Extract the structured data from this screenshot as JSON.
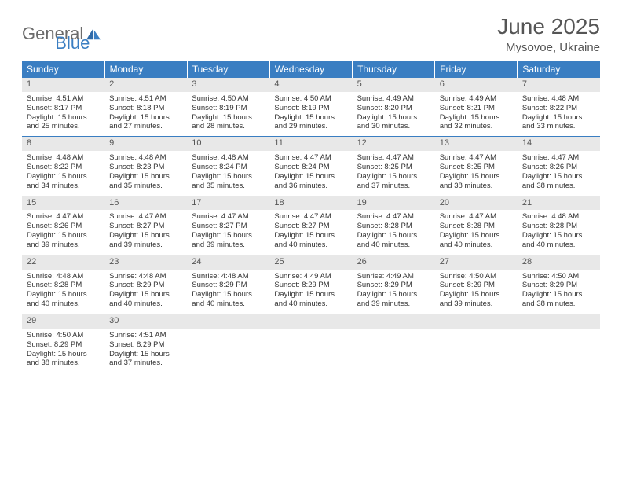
{
  "brand": {
    "part1": "General",
    "part2": "Blue"
  },
  "title": "June 2025",
  "location": "Mysovoe, Ukraine",
  "colors": {
    "header_bg": "#3a7ec2",
    "header_text": "#ffffff",
    "daynum_bg": "#e8e8e8",
    "rule": "#3a7ec2",
    "body_text": "#333333",
    "title_text": "#555555"
  },
  "days_of_week": [
    "Sunday",
    "Monday",
    "Tuesday",
    "Wednesday",
    "Thursday",
    "Friday",
    "Saturday"
  ],
  "weeks": [
    [
      {
        "n": "1",
        "sr": "4:51 AM",
        "ss": "8:17 PM",
        "dl": "15 hours and 25 minutes."
      },
      {
        "n": "2",
        "sr": "4:51 AM",
        "ss": "8:18 PM",
        "dl": "15 hours and 27 minutes."
      },
      {
        "n": "3",
        "sr": "4:50 AM",
        "ss": "8:19 PM",
        "dl": "15 hours and 28 minutes."
      },
      {
        "n": "4",
        "sr": "4:50 AM",
        "ss": "8:19 PM",
        "dl": "15 hours and 29 minutes."
      },
      {
        "n": "5",
        "sr": "4:49 AM",
        "ss": "8:20 PM",
        "dl": "15 hours and 30 minutes."
      },
      {
        "n": "6",
        "sr": "4:49 AM",
        "ss": "8:21 PM",
        "dl": "15 hours and 32 minutes."
      },
      {
        "n": "7",
        "sr": "4:48 AM",
        "ss": "8:22 PM",
        "dl": "15 hours and 33 minutes."
      }
    ],
    [
      {
        "n": "8",
        "sr": "4:48 AM",
        "ss": "8:22 PM",
        "dl": "15 hours and 34 minutes."
      },
      {
        "n": "9",
        "sr": "4:48 AM",
        "ss": "8:23 PM",
        "dl": "15 hours and 35 minutes."
      },
      {
        "n": "10",
        "sr": "4:48 AM",
        "ss": "8:24 PM",
        "dl": "15 hours and 35 minutes."
      },
      {
        "n": "11",
        "sr": "4:47 AM",
        "ss": "8:24 PM",
        "dl": "15 hours and 36 minutes."
      },
      {
        "n": "12",
        "sr": "4:47 AM",
        "ss": "8:25 PM",
        "dl": "15 hours and 37 minutes."
      },
      {
        "n": "13",
        "sr": "4:47 AM",
        "ss": "8:25 PM",
        "dl": "15 hours and 38 minutes."
      },
      {
        "n": "14",
        "sr": "4:47 AM",
        "ss": "8:26 PM",
        "dl": "15 hours and 38 minutes."
      }
    ],
    [
      {
        "n": "15",
        "sr": "4:47 AM",
        "ss": "8:26 PM",
        "dl": "15 hours and 39 minutes."
      },
      {
        "n": "16",
        "sr": "4:47 AM",
        "ss": "8:27 PM",
        "dl": "15 hours and 39 minutes."
      },
      {
        "n": "17",
        "sr": "4:47 AM",
        "ss": "8:27 PM",
        "dl": "15 hours and 39 minutes."
      },
      {
        "n": "18",
        "sr": "4:47 AM",
        "ss": "8:27 PM",
        "dl": "15 hours and 40 minutes."
      },
      {
        "n": "19",
        "sr": "4:47 AM",
        "ss": "8:28 PM",
        "dl": "15 hours and 40 minutes."
      },
      {
        "n": "20",
        "sr": "4:47 AM",
        "ss": "8:28 PM",
        "dl": "15 hours and 40 minutes."
      },
      {
        "n": "21",
        "sr": "4:48 AM",
        "ss": "8:28 PM",
        "dl": "15 hours and 40 minutes."
      }
    ],
    [
      {
        "n": "22",
        "sr": "4:48 AM",
        "ss": "8:28 PM",
        "dl": "15 hours and 40 minutes."
      },
      {
        "n": "23",
        "sr": "4:48 AM",
        "ss": "8:29 PM",
        "dl": "15 hours and 40 minutes."
      },
      {
        "n": "24",
        "sr": "4:48 AM",
        "ss": "8:29 PM",
        "dl": "15 hours and 40 minutes."
      },
      {
        "n": "25",
        "sr": "4:49 AM",
        "ss": "8:29 PM",
        "dl": "15 hours and 40 minutes."
      },
      {
        "n": "26",
        "sr": "4:49 AM",
        "ss": "8:29 PM",
        "dl": "15 hours and 39 minutes."
      },
      {
        "n": "27",
        "sr": "4:50 AM",
        "ss": "8:29 PM",
        "dl": "15 hours and 39 minutes."
      },
      {
        "n": "28",
        "sr": "4:50 AM",
        "ss": "8:29 PM",
        "dl": "15 hours and 38 minutes."
      }
    ],
    [
      {
        "n": "29",
        "sr": "4:50 AM",
        "ss": "8:29 PM",
        "dl": "15 hours and 38 minutes."
      },
      {
        "n": "30",
        "sr": "4:51 AM",
        "ss": "8:29 PM",
        "dl": "15 hours and 37 minutes."
      },
      null,
      null,
      null,
      null,
      null
    ]
  ],
  "labels": {
    "sunrise": "Sunrise: ",
    "sunset": "Sunset: ",
    "daylight": "Daylight: "
  }
}
